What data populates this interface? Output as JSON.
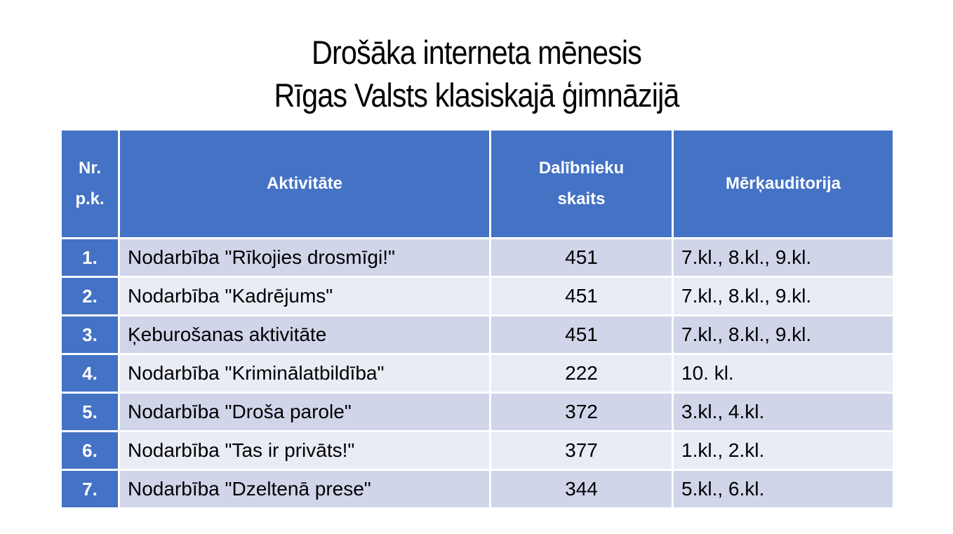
{
  "slide": {
    "title": {
      "line1": "Drošāka interneta mēnesis",
      "line2": "Rīgas Valsts klasiskajā ģimnāzijā"
    }
  },
  "table": {
    "headers": {
      "nr": "Nr.\np.k.",
      "aktivitate": "Aktivitāte",
      "skaits": "Dalībnieku\nskaits",
      "auditorija": "Mērķauditorija"
    },
    "rows": [
      {
        "nr": "1.",
        "aktivitate": "Nodarbība \"Rīkojies drosmīgi!\"",
        "skaits": "451",
        "auditorija": "7.kl., 8.kl., 9.kl."
      },
      {
        "nr": "2.",
        "aktivitate": "Nodarbība \"Kadrējums\"",
        "skaits": "451",
        "auditorija": "7.kl., 8.kl., 9.kl."
      },
      {
        "nr": "3.",
        "aktivitate": "Ķeburošanas aktivitāte",
        "skaits": "451",
        "auditorija": "7.kl., 8.kl., 9.kl."
      },
      {
        "nr": "4.",
        "aktivitate": "Nodarbība \"Kriminālatbildība\"",
        "skaits": "222",
        "auditorija": "10. kl."
      },
      {
        "nr": "5.",
        "aktivitate": "Nodarbība \"Droša parole\"",
        "skaits": "372",
        "auditorija": "3.kl., 4.kl."
      },
      {
        "nr": "6.",
        "aktivitate": "Nodarbība \"Tas ir privāts!\"",
        "skaits": "377",
        "auditorija": "1.kl., 2.kl."
      },
      {
        "nr": "7.",
        "aktivitate": "Nodarbība \"Dzeltenā prese\"",
        "skaits": "344",
        "auditorija": "5.kl., 6.kl."
      }
    ]
  },
  "colors": {
    "header_blue": "#4472C4",
    "band_dark": "#D0D5EA",
    "band_light": "#E9EBF5",
    "cell_border": "#FFFFFF",
    "header_text": "#FFFFFF",
    "body_text": "#000000"
  }
}
